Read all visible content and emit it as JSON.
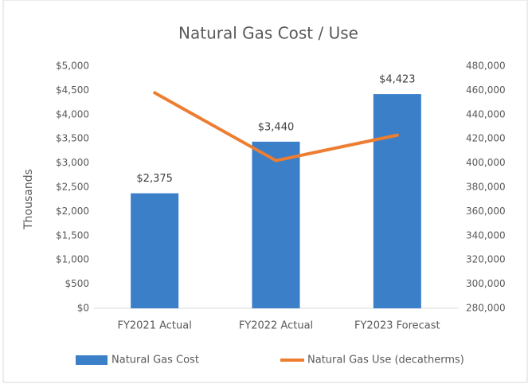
{
  "chart_data": {
    "type": "combo",
    "title": "Natural Gas Cost / Use",
    "y_label": "Thousands",
    "categories": [
      "FY2021 Actual",
      "FY2022 Actual",
      "FY2023 Forecast"
    ],
    "series": [
      {
        "name": "Natural Gas Cost",
        "type": "bar",
        "color": "#3a7fc8",
        "values": [
          2375,
          3440,
          4423
        ],
        "value_labels": [
          "$2,375",
          "$3,440",
          "$4,423"
        ]
      },
      {
        "name": "Natural Gas Use (decatherms)",
        "type": "line",
        "axis": "y2",
        "color": "#ed7d31",
        "values": [
          458000,
          402000,
          423000
        ]
      }
    ],
    "ylim": [
      0,
      5000
    ],
    "yticks": [
      {
        "value": 0,
        "label": "$0"
      },
      {
        "value": 500,
        "label": "$500"
      },
      {
        "value": 1000,
        "label": "$1,000"
      },
      {
        "value": 1500,
        "label": "$1,500"
      },
      {
        "value": 2000,
        "label": "$2,000"
      },
      {
        "value": 2500,
        "label": "$2,500"
      },
      {
        "value": 3000,
        "label": "$3,000"
      },
      {
        "value": 3500,
        "label": "$3,500"
      },
      {
        "value": 4000,
        "label": "$4,000"
      },
      {
        "value": 4500,
        "label": "$4,500"
      },
      {
        "value": 5000,
        "label": "$5,000"
      }
    ],
    "y2lim": [
      280000,
      480000
    ],
    "y2ticks": [
      {
        "value": 280000,
        "label": "280,000"
      },
      {
        "value": 300000,
        "label": "300,000"
      },
      {
        "value": 320000,
        "label": "320,000"
      },
      {
        "value": 340000,
        "label": "340,000"
      },
      {
        "value": 360000,
        "label": "360,000"
      },
      {
        "value": 380000,
        "label": "380,000"
      },
      {
        "value": 400000,
        "label": "400,000"
      },
      {
        "value": 420000,
        "label": "420,000"
      },
      {
        "value": 440000,
        "label": "440,000"
      },
      {
        "value": 460000,
        "label": "460,000"
      },
      {
        "value": 480000,
        "label": "480,000"
      }
    ],
    "grid": false,
    "legend": "bottom"
  }
}
